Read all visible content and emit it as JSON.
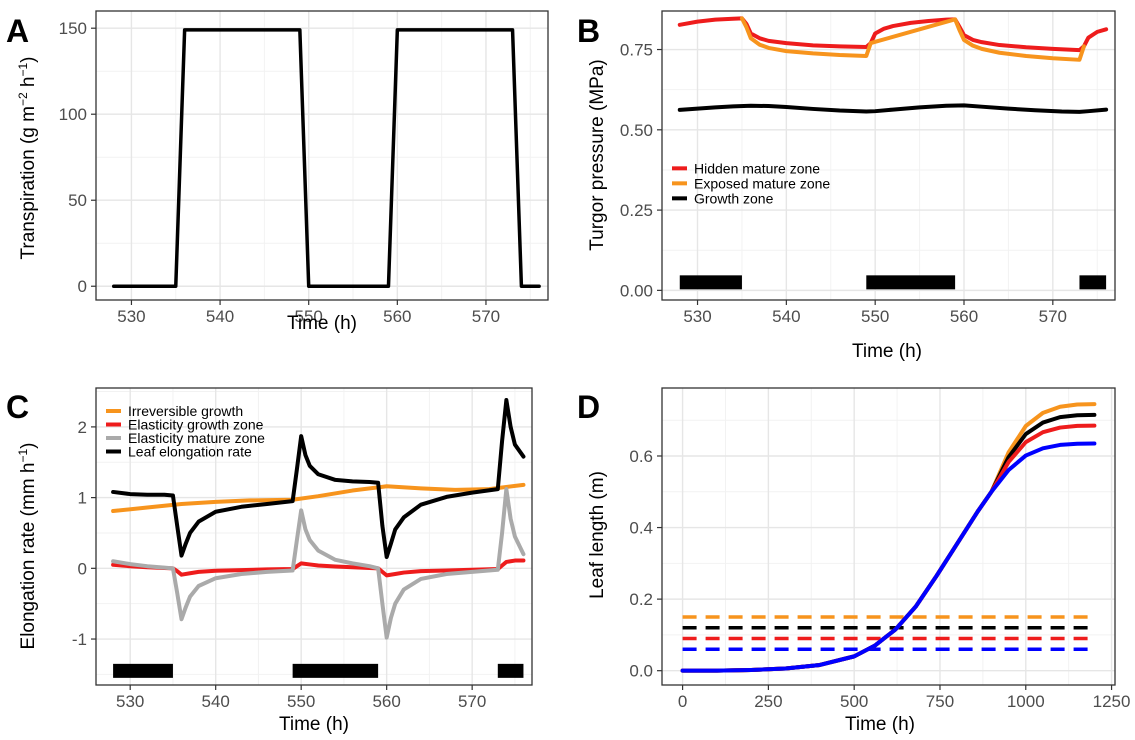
{
  "chart_data": [
    {
      "panel": "A",
      "type": "line",
      "xlabel": "Time (h)",
      "ylabel_parts": [
        "Transpiration (g m",
        "−2",
        " h",
        "−1",
        ")"
      ],
      "xlim": [
        526,
        577
      ],
      "ylim": [
        -8,
        160
      ],
      "xticks": [
        530,
        540,
        550,
        560,
        570
      ],
      "yticks": [
        0,
        50,
        100,
        150
      ],
      "grid": true,
      "series": [
        {
          "color": "#000000",
          "x": [
            528,
            535,
            536,
            549,
            550,
            559,
            560,
            573,
            574,
            576
          ],
          "y": [
            0,
            0,
            149,
            149,
            0,
            0,
            149,
            149,
            0,
            0
          ]
        }
      ]
    },
    {
      "panel": "B",
      "type": "line",
      "xlabel": "Time (h)",
      "ylabel": "Turgor pressure (MPa)",
      "xlim": [
        526,
        577
      ],
      "ylim": [
        -0.03,
        0.87
      ],
      "xticks": [
        530,
        540,
        550,
        560,
        570
      ],
      "yticks": [
        "0.00",
        "0.25",
        "0.50",
        "0.75"
      ],
      "grid": true,
      "legend": "left",
      "series": [
        {
          "name": "Hidden mature zone",
          "color": "#ee1c1c",
          "x": [
            528,
            530,
            532,
            534,
            535,
            535.5,
            536,
            537,
            538,
            540,
            543,
            546,
            549,
            549.5,
            550,
            551,
            552,
            554,
            556,
            558,
            559,
            559.5,
            560,
            561,
            562,
            564,
            567,
            570,
            573,
            573.5,
            574,
            575,
            576
          ],
          "y": [
            0.827,
            0.837,
            0.843,
            0.846,
            0.847,
            0.83,
            0.8,
            0.785,
            0.777,
            0.77,
            0.763,
            0.76,
            0.758,
            0.77,
            0.8,
            0.815,
            0.823,
            0.833,
            0.839,
            0.843,
            0.844,
            0.82,
            0.795,
            0.78,
            0.773,
            0.764,
            0.757,
            0.752,
            0.748,
            0.76,
            0.787,
            0.805,
            0.813
          ]
        },
        {
          "name": "Exposed mature zone",
          "color": "#f7941d",
          "x": [
            535,
            535.5,
            536,
            537,
            538,
            540,
            543,
            546,
            549,
            549.5,
            559,
            559.5,
            560,
            561,
            562,
            564,
            567,
            570,
            573,
            573.5
          ],
          "y": [
            0.847,
            0.82,
            0.785,
            0.765,
            0.755,
            0.745,
            0.738,
            0.733,
            0.73,
            0.77,
            0.844,
            0.81,
            0.78,
            0.762,
            0.752,
            0.74,
            0.73,
            0.723,
            0.718,
            0.76
          ]
        },
        {
          "name": "Growth zone",
          "color": "#000000",
          "x": [
            528,
            530,
            532,
            534,
            536,
            538,
            540,
            543,
            546,
            549,
            550,
            552,
            555,
            558,
            560,
            562,
            565,
            568,
            571,
            573,
            574,
            576
          ],
          "y": [
            0.562,
            0.566,
            0.57,
            0.573,
            0.575,
            0.574,
            0.571,
            0.565,
            0.56,
            0.557,
            0.558,
            0.563,
            0.57,
            0.575,
            0.576,
            0.572,
            0.566,
            0.561,
            0.557,
            0.556,
            0.558,
            0.563
          ]
        }
      ],
      "night_bars": [
        [
          528,
          535
        ],
        [
          549,
          559
        ],
        [
          573,
          576
        ]
      ],
      "night_bar_y": 0.025
    },
    {
      "panel": "C",
      "type": "line",
      "xlabel": "Time (h)",
      "ylabel_parts": [
        "Elongation rate (mm h",
        "−1",
        ")"
      ],
      "xlim": [
        526,
        577
      ],
      "ylim": [
        -1.65,
        2.55
      ],
      "xticks": [
        530,
        540,
        550,
        560,
        570
      ],
      "yticks": [
        -1,
        0,
        1,
        2
      ],
      "grid": true,
      "legend": "top-left",
      "series": [
        {
          "name": "Irreversible growth",
          "color": "#f7941d",
          "x": [
            528,
            532,
            536,
            540,
            544,
            549,
            552,
            556,
            560,
            564,
            568,
            572,
            576
          ],
          "y": [
            0.81,
            0.86,
            0.91,
            0.94,
            0.96,
            0.97,
            1.02,
            1.1,
            1.16,
            1.13,
            1.11,
            1.12,
            1.18
          ]
        },
        {
          "name": "Elasticity growth zone",
          "color": "#ee1c1c",
          "x": [
            528,
            530,
            532,
            534,
            535,
            535.5,
            536,
            537,
            538,
            540,
            543,
            546,
            549,
            549.5,
            550,
            551,
            552,
            554,
            556,
            558,
            559,
            559.5,
            560,
            561,
            562,
            564,
            567,
            570,
            573,
            573.5,
            574,
            575,
            576
          ],
          "y": [
            0.05,
            0.03,
            0.015,
            0.005,
            0.0,
            -0.04,
            -0.09,
            -0.07,
            -0.05,
            -0.035,
            -0.025,
            -0.015,
            -0.01,
            0.03,
            0.07,
            0.055,
            0.04,
            0.025,
            0.015,
            0.005,
            0.0,
            -0.05,
            -0.1,
            -0.08,
            -0.06,
            -0.04,
            -0.03,
            -0.02,
            -0.01,
            0.04,
            0.09,
            0.11,
            0.11
          ]
        },
        {
          "name": "Elasticity mature zone",
          "color": "#aaaaaa",
          "x": [
            528,
            530,
            532,
            534,
            535,
            535.5,
            536,
            536.5,
            537,
            538,
            540,
            543,
            546,
            549,
            549.5,
            550,
            550.5,
            551,
            552,
            554,
            556,
            558,
            559,
            559.5,
            560,
            560.5,
            561,
            562,
            564,
            567,
            570,
            573,
            573.5,
            574,
            574.5,
            575,
            576
          ],
          "y": [
            0.1,
            0.06,
            0.03,
            0.01,
            0.0,
            -0.35,
            -0.72,
            -0.55,
            -0.4,
            -0.25,
            -0.14,
            -0.08,
            -0.05,
            -0.03,
            0.4,
            0.82,
            0.55,
            0.4,
            0.25,
            0.12,
            0.07,
            0.03,
            0.0,
            -0.5,
            -0.98,
            -0.7,
            -0.5,
            -0.3,
            -0.15,
            -0.08,
            -0.05,
            -0.02,
            0.5,
            1.12,
            0.7,
            0.45,
            0.2
          ]
        },
        {
          "name": "Leaf elongation rate",
          "color": "#000000",
          "x": [
            528,
            530,
            532,
            534,
            535,
            535.5,
            536,
            536.5,
            537,
            538,
            540,
            543,
            546,
            549,
            549.5,
            550,
            550.5,
            551,
            552,
            554,
            556,
            558,
            559,
            559.5,
            560,
            560.5,
            561,
            562,
            564,
            567,
            570,
            573,
            573.5,
            574,
            574.5,
            575,
            576
          ],
          "y": [
            1.08,
            1.05,
            1.04,
            1.04,
            1.03,
            0.6,
            0.18,
            0.35,
            0.5,
            0.66,
            0.8,
            0.87,
            0.91,
            0.95,
            1.4,
            1.87,
            1.6,
            1.45,
            1.33,
            1.25,
            1.23,
            1.22,
            1.21,
            0.6,
            0.16,
            0.35,
            0.55,
            0.72,
            0.9,
            1.01,
            1.07,
            1.12,
            1.8,
            2.38,
            2.0,
            1.75,
            1.58
          ]
        }
      ],
      "night_bars": [
        [
          528,
          535
        ],
        [
          549,
          559
        ],
        [
          573,
          576
        ]
      ],
      "night_bar_y": -1.45
    },
    {
      "panel": "D",
      "type": "line",
      "xlabel": "Time (h)",
      "ylabel": "Leaf length (m)",
      "xlim": [
        -60,
        1260
      ],
      "ylim": [
        -0.04,
        0.79
      ],
      "xticks": [
        0,
        250,
        500,
        750,
        1000,
        1250
      ],
      "yticks": [
        "0.0",
        "0.2",
        "0.4",
        "0.6"
      ],
      "grid": true,
      "series": [
        {
          "color": "#f7941d",
          "plateau": 0.745
        },
        {
          "color": "#000000",
          "plateau": 0.715
        },
        {
          "color": "#ee1c1c",
          "plateau": 0.685
        },
        {
          "color": "#0000ff",
          "plateau": 0.635
        }
      ],
      "common_curve": {
        "x": [
          0,
          100,
          200,
          300,
          400,
          500,
          560,
          620,
          680,
          740,
          800,
          860,
          900
        ],
        "y": [
          0.0,
          0.0,
          0.002,
          0.006,
          0.016,
          0.04,
          0.07,
          0.115,
          0.18,
          0.265,
          0.355,
          0.445,
          0.5
        ]
      },
      "plateau_x": [
        900,
        950,
        1000,
        1050,
        1100,
        1150,
        1200
      ],
      "plateau_frac": [
        0.0,
        0.45,
        0.75,
        0.9,
        0.97,
        0.995,
        1.0
      ],
      "dashed_lines": [
        {
          "color": "#f7941d",
          "y": 0.15
        },
        {
          "color": "#000000",
          "y": 0.12
        },
        {
          "color": "#ee1c1c",
          "y": 0.09
        },
        {
          "color": "#0000ff",
          "y": 0.06
        }
      ],
      "dashed_x": [
        0,
        1200
      ]
    }
  ],
  "panel_labels": [
    "A",
    "B",
    "C",
    "D"
  ]
}
